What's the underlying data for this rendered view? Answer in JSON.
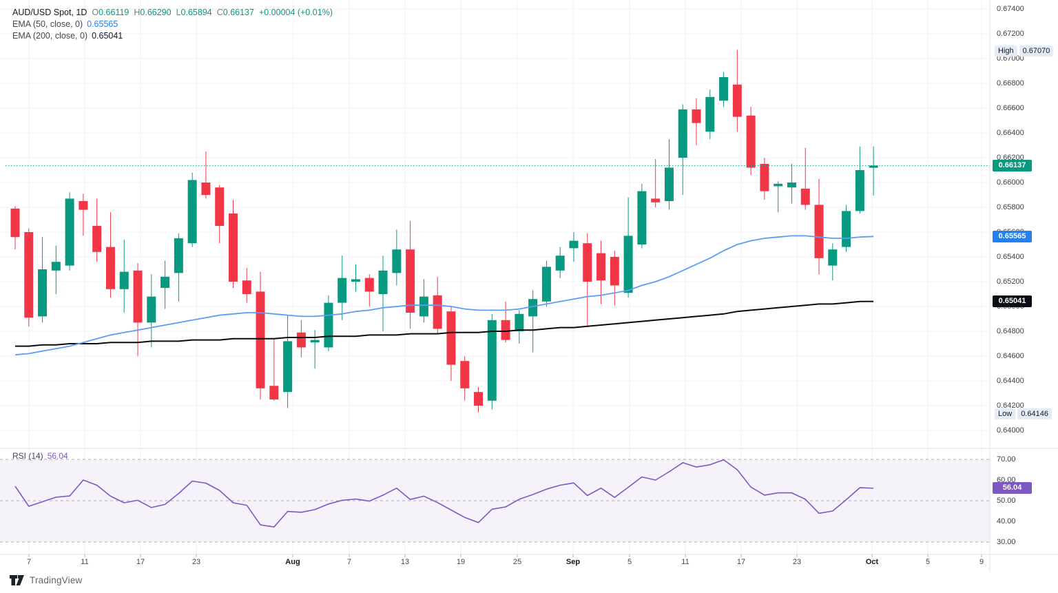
{
  "header": {
    "symbol_title": "AUD/USD Spot, 1D",
    "ohlc": {
      "o_label": "O",
      "o": "0.66119",
      "h_label": "H",
      "h": "0.66290",
      "l_label": "L",
      "l": "0.65894",
      "c_label": "C",
      "c": "0.66137",
      "change": "+0.00004 (+0.01%)"
    },
    "ema50_label": "EMA (50, close, 0)",
    "ema50_value": "0.65565",
    "ema200_label": "EMA (200, close, 0)",
    "ema200_value": "0.65041"
  },
  "rsi_legend": {
    "label": "RSI (14)",
    "value": "56.04"
  },
  "badges": {
    "high_label": "High",
    "high_value": "0.67070",
    "low_label": "Low",
    "low_value": "0.64146",
    "last_value": "0.66137",
    "ema50_value": "0.65565",
    "ema200_value": "0.65041",
    "rsi_value": "56.04"
  },
  "price_axis": {
    "min": 0.64,
    "max": 0.674,
    "step": 0.002,
    "decimals": 5
  },
  "rsi_axis": {
    "ticks": [
      70,
      60,
      50,
      40,
      30
    ],
    "dashed": [
      70,
      50,
      30
    ],
    "grid": [
      60,
      40
    ],
    "band": [
      30,
      70
    ]
  },
  "time_axis": {
    "labels": [
      {
        "t": "7",
        "x": 42
      },
      {
        "t": "11",
        "x": 123
      },
      {
        "t": "17",
        "x": 204
      },
      {
        "t": "23",
        "x": 285
      },
      {
        "t": "Aug",
        "x": 425,
        "major": true
      },
      {
        "t": "7",
        "x": 507
      },
      {
        "t": "13",
        "x": 588
      },
      {
        "t": "19",
        "x": 669
      },
      {
        "t": "25",
        "x": 751
      },
      {
        "t": "Sep",
        "x": 832,
        "major": true
      },
      {
        "t": "5",
        "x": 914
      },
      {
        "t": "11",
        "x": 995
      },
      {
        "t": "17",
        "x": 1076
      },
      {
        "t": "23",
        "x": 1157
      },
      {
        "t": "Oct",
        "x": 1266,
        "major": true
      },
      {
        "t": "5",
        "x": 1347
      },
      {
        "t": "9",
        "x": 1425
      }
    ]
  },
  "footer": {
    "brand": "TradingView"
  },
  "colors": {
    "up": "#089981",
    "down": "#F23645",
    "ema50_line": "#5B9CF6",
    "ema200_line": "#0a0a0a",
    "rsi_line": "#7E57C2",
    "rsi_badge": "#7E57C2",
    "last_badge": "#089981",
    "ema50_badge": "#2380F2",
    "ema200_badge": "#0C0E15",
    "hl_chip_bg": "#E4ECF8",
    "grid": "#F0F2F8",
    "dashed": "#ABAEB8",
    "axis_text": "#3C404B",
    "text_dark": "#131722",
    "text_gray": "#787B86",
    "band_fill": "rgba(126,87,194,0.08)",
    "border": "#E0E3EB"
  },
  "chart_data": {
    "type": "candlestick",
    "title": "AUD/USD Spot, 1D",
    "interval": "1D",
    "legend_ohlc": {
      "open": 0.66119,
      "high": 0.6629,
      "low": 0.65894,
      "close": 0.66137,
      "change": 4e-05,
      "change_pct": 0.01
    },
    "ylim": [
      0.64,
      0.674
    ],
    "rsi_ylim_shown": [
      30,
      70
    ],
    "high_marker": 0.6707,
    "low_marker": 0.64146,
    "last_price": 0.66137,
    "ema50_last": 0.65565,
    "ema200_last": 0.65041,
    "rsi_last": 56.04,
    "candles": [
      [
        0.6579,
        0.6581,
        0.6546,
        0.6556
      ],
      [
        0.656,
        0.6563,
        0.6484,
        0.6491
      ],
      [
        0.6492,
        0.6556,
        0.6487,
        0.653
      ],
      [
        0.6529,
        0.6549,
        0.651,
        0.6536
      ],
      [
        0.6533,
        0.6592,
        0.6529,
        0.6587
      ],
      [
        0.6585,
        0.6591,
        0.6557,
        0.6578
      ],
      [
        0.6565,
        0.6587,
        0.6536,
        0.6544
      ],
      [
        0.6548,
        0.6576,
        0.6507,
        0.6514
      ],
      [
        0.6514,
        0.6554,
        0.6495,
        0.6528
      ],
      [
        0.6529,
        0.6535,
        0.646,
        0.6487
      ],
      [
        0.6487,
        0.6526,
        0.6467,
        0.6508
      ],
      [
        0.6515,
        0.6537,
        0.6498,
        0.6524
      ],
      [
        0.6527,
        0.6559,
        0.6504,
        0.6555
      ],
      [
        0.6551,
        0.6608,
        0.6548,
        0.6602
      ],
      [
        0.66,
        0.6625,
        0.6587,
        0.659
      ],
      [
        0.6596,
        0.6598,
        0.6551,
        0.6565
      ],
      [
        0.6575,
        0.6586,
        0.6515,
        0.652
      ],
      [
        0.6521,
        0.6531,
        0.6503,
        0.651
      ],
      [
        0.6512,
        0.6528,
        0.6425,
        0.6434
      ],
      [
        0.6436,
        0.6474,
        0.6424,
        0.6425
      ],
      [
        0.6431,
        0.6493,
        0.6418,
        0.6472
      ],
      [
        0.6479,
        0.6489,
        0.6459,
        0.6467
      ],
      [
        0.6471,
        0.6481,
        0.645,
        0.6473
      ],
      [
        0.6467,
        0.6509,
        0.6464,
        0.6503
      ],
      [
        0.6503,
        0.6541,
        0.6489,
        0.6523
      ],
      [
        0.652,
        0.6534,
        0.6512,
        0.6522
      ],
      [
        0.6523,
        0.6526,
        0.65,
        0.6512
      ],
      [
        0.651,
        0.6541,
        0.648,
        0.6529
      ],
      [
        0.6527,
        0.6562,
        0.6517,
        0.6546
      ],
      [
        0.6546,
        0.6569,
        0.6482,
        0.6495
      ],
      [
        0.6492,
        0.6522,
        0.6487,
        0.6508
      ],
      [
        0.6509,
        0.6524,
        0.6478,
        0.6482
      ],
      [
        0.6496,
        0.65,
        0.644,
        0.6453
      ],
      [
        0.6456,
        0.646,
        0.6424,
        0.6434
      ],
      [
        0.6431,
        0.6435,
        0.64146,
        0.642
      ],
      [
        0.6424,
        0.6494,
        0.6417,
        0.6489
      ],
      [
        0.6489,
        0.6504,
        0.6471,
        0.6473
      ],
      [
        0.648,
        0.6497,
        0.647,
        0.6494
      ],
      [
        0.6492,
        0.6513,
        0.6463,
        0.6506
      ],
      [
        0.6504,
        0.6537,
        0.65,
        0.6532
      ],
      [
        0.6529,
        0.6548,
        0.6523,
        0.6541
      ],
      [
        0.6547,
        0.656,
        0.6536,
        0.6553
      ],
      [
        0.6551,
        0.6559,
        0.6484,
        0.652
      ],
      [
        0.6543,
        0.6553,
        0.6502,
        0.6521
      ],
      [
        0.654,
        0.6545,
        0.6501,
        0.6517
      ],
      [
        0.6511,
        0.6588,
        0.6507,
        0.6557
      ],
      [
        0.655,
        0.6599,
        0.6547,
        0.6593
      ],
      [
        0.6587,
        0.6619,
        0.658,
        0.6584
      ],
      [
        0.6585,
        0.6635,
        0.6578,
        0.6612
      ],
      [
        0.662,
        0.6663,
        0.659,
        0.6659
      ],
      [
        0.6659,
        0.6668,
        0.663,
        0.6648
      ],
      [
        0.6641,
        0.6675,
        0.6635,
        0.6669
      ],
      [
        0.6666,
        0.6689,
        0.6661,
        0.6685
      ],
      [
        0.6679,
        0.6707,
        0.6641,
        0.6653
      ],
      [
        0.6654,
        0.6661,
        0.6606,
        0.6612
      ],
      [
        0.6615,
        0.662,
        0.6586,
        0.6593
      ],
      [
        0.6597,
        0.6601,
        0.6576,
        0.6599
      ],
      [
        0.6596,
        0.6615,
        0.6583,
        0.66
      ],
      [
        0.6595,
        0.6628,
        0.6578,
        0.6582
      ],
      [
        0.6582,
        0.6603,
        0.6526,
        0.6539
      ],
      [
        0.6533,
        0.6551,
        0.6521,
        0.6546
      ],
      [
        0.6548,
        0.6582,
        0.6544,
        0.6577
      ],
      [
        0.6577,
        0.6629,
        0.6575,
        0.661
      ],
      [
        0.66119,
        0.6629,
        0.65894,
        0.66137
      ]
    ],
    "ema50": [
      0.6461,
      0.6462,
      0.6464,
      0.6466,
      0.6468,
      0.6471,
      0.6474,
      0.6477,
      0.6479,
      0.6481,
      0.6483,
      0.6485,
      0.6487,
      0.6489,
      0.6491,
      0.6493,
      0.6494,
      0.6495,
      0.6495,
      0.6494,
      0.6493,
      0.6492,
      0.6492,
      0.6493,
      0.6494,
      0.6496,
      0.6497,
      0.6499,
      0.65,
      0.6501,
      0.6501,
      0.6501,
      0.65,
      0.6498,
      0.6497,
      0.6497,
      0.6497,
      0.6498,
      0.65,
      0.6502,
      0.6504,
      0.6506,
      0.6508,
      0.6509,
      0.6511,
      0.6513,
      0.6517,
      0.652,
      0.6524,
      0.6529,
      0.6534,
      0.6539,
      0.6545,
      0.655,
      0.6553,
      0.6555,
      0.6556,
      0.6557,
      0.6557,
      0.6556,
      0.6555,
      0.6555,
      0.6556,
      0.65565
    ],
    "ema200": [
      0.6468,
      0.6468,
      0.6469,
      0.6469,
      0.647,
      0.647,
      0.647,
      0.6471,
      0.6471,
      0.6471,
      0.6472,
      0.6472,
      0.6472,
      0.6473,
      0.6473,
      0.6473,
      0.6474,
      0.6474,
      0.6474,
      0.6474,
      0.6475,
      0.6475,
      0.6475,
      0.6476,
      0.6476,
      0.6476,
      0.6477,
      0.6477,
      0.6477,
      0.6478,
      0.6478,
      0.6478,
      0.6479,
      0.6479,
      0.6479,
      0.648,
      0.648,
      0.6481,
      0.6481,
      0.6482,
      0.6483,
      0.6483,
      0.6484,
      0.6485,
      0.6486,
      0.6487,
      0.6488,
      0.6489,
      0.649,
      0.6491,
      0.6492,
      0.6493,
      0.6494,
      0.6496,
      0.6497,
      0.6498,
      0.6499,
      0.65,
      0.6501,
      0.6502,
      0.6502,
      0.6503,
      0.6504,
      0.65041
    ],
    "rsi": [
      57.0,
      47.3,
      49.5,
      51.7,
      52.3,
      60.0,
      57.5,
      52.2,
      49.0,
      50.2,
      46.7,
      48.2,
      53.5,
      59.5,
      58.5,
      55.0,
      49.0,
      47.8,
      38.3,
      37.3,
      44.8,
      44.4,
      45.7,
      48.4,
      50.2,
      50.8,
      49.8,
      52.7,
      56.1,
      50.6,
      52.2,
      49.1,
      45.5,
      41.9,
      39.4,
      45.9,
      47.0,
      50.7,
      53.0,
      55.6,
      57.5,
      58.6,
      52.5,
      56.1,
      51.6,
      56.5,
      61.5,
      60.0,
      64.0,
      68.4,
      66.3,
      67.4,
      69.8,
      65.0,
      56.6,
      52.7,
      53.8,
      53.8,
      50.7,
      43.9,
      45.0,
      50.5,
      56.3,
      56.04
    ]
  }
}
